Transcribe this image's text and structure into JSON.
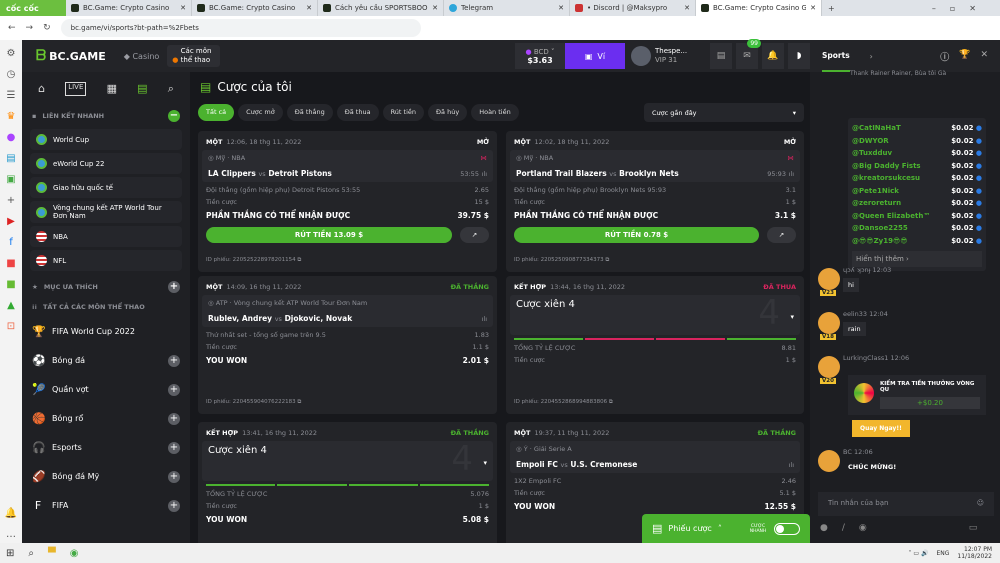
{
  "browser": {
    "logo": "cốc cốc",
    "tabs": [
      "BC.Game: Crypto Casino",
      "BC.Game: Crypto Casino",
      "Cách yêu cầu SPORTSBOOK",
      "Telegram",
      "• Discord | @Maksypro",
      "BC.Game: Crypto Casino Gam"
    ],
    "url": "bc.game/vi/sports?bt-path=%2Fbets"
  },
  "header": {
    "brand": "BC.GAME",
    "casino": "Casino",
    "sports": "Các môn thể thao",
    "currency": "BCD",
    "balance": "$3.63",
    "wallet": "Ví",
    "user": "Thespe...",
    "vip": "VIP 31",
    "notif_count": "99"
  },
  "nav": {
    "quick_title": "LIÊN KẾT NHANH",
    "quick": [
      {
        "label": "World Cup",
        "icon": "globe"
      },
      {
        "label": "eWorld Cup 22",
        "icon": "globe"
      },
      {
        "label": "Giao hữu quốc tế",
        "icon": "globe"
      },
      {
        "label": "Vòng chung kết ATP World Tour Đơn Nam",
        "icon": "globe"
      },
      {
        "label": "NBA",
        "icon": "us-flag"
      },
      {
        "label": "NFL",
        "icon": "us-flag"
      }
    ],
    "fav_title": "MỤC ƯA THÍCH",
    "all_title": "TẤT CẢ CÁC MÔN THỂ THAO",
    "sports": [
      {
        "label": "FIFA World Cup 2022",
        "icon": "🏆"
      },
      {
        "label": "Bóng đá",
        "icon": "⚽"
      },
      {
        "label": "Quần vợt",
        "icon": "🎾"
      },
      {
        "label": "Bóng rổ",
        "icon": "🏀"
      },
      {
        "label": "Esports",
        "icon": "🎧"
      },
      {
        "label": "Bóng đá Mỹ",
        "icon": "🏈"
      },
      {
        "label": "FIFA",
        "icon": "F"
      }
    ]
  },
  "main": {
    "title": "Cược của tôi",
    "filters": [
      "Tất cả",
      "Cược mở",
      "Đã thắng",
      "Đã thua",
      "Rút tiền",
      "Đã hủy",
      "Hoàn tiền"
    ],
    "sort": "Cược gần đây",
    "cards": [
      {
        "type": "MỘT",
        "date": "12:06, 18 thg 11, 2022",
        "status": "MỞ",
        "league": "Mỹ · NBA",
        "home": "LA Clippers",
        "away": "Detroit Pistons",
        "score": "53:55",
        "market": "Đội thắng (gồm hiệp phụ) Detroit Pistons  53:55",
        "odds": "2.65",
        "stake_label": "Tiền cược",
        "stake": "15 $",
        "win_label": "PHẦN THẮNG CÓ THỂ NHẬN ĐƯỢC",
        "win": "39.75 $",
        "cashout": "RÚT TIỀN 13.09 $",
        "ticket": "ID phiếu: 220525228978201154"
      },
      {
        "type": "MỘT",
        "date": "12:02, 18 thg 11, 2022",
        "status": "MỞ",
        "league": "Mỹ · NBA",
        "home": "Portland Trail Blazers",
        "away": "Brooklyn Nets",
        "score": "95:93",
        "market": "Đội thắng (gồm hiệp phụ) Brooklyn Nets  95:93",
        "odds": "3.1",
        "stake_label": "Tiền cược",
        "stake": "1 $",
        "win_label": "PHẦN THẮNG CÓ THỂ NHẬN ĐƯỢC",
        "win": "3.1 $",
        "cashout": "RÚT TIỀN 0.78 $",
        "ticket": "ID phiếu: 220525090877334373"
      },
      {
        "type": "MỘT",
        "date": "14:09, 16 thg 11, 2022",
        "status": "ĐÃ THẮNG",
        "league": "ATP · Vòng chung kết ATP World Tour Đơn Nam",
        "home": "Rublev, Andrey",
        "away": "Djokovic, Novak",
        "score": "",
        "market": "Thứ nhất set - tổng số game trên 9.5",
        "odds": "1.83",
        "stake_label": "Tiền cược",
        "stake": "1.1 $",
        "win_label": "YOU WON",
        "win": "2.01 $",
        "ticket": "ID phiếu: 220455904076222183"
      },
      {
        "type": "KẾT HỢP",
        "date": "13:44, 16 thg 11, 2022",
        "status": "ĐÃ THUA",
        "combo": "Cược xiên 4",
        "legs": "4",
        "leg_results": [
          "won",
          "lost",
          "lost",
          "won"
        ],
        "odds_label": "TỔNG TỶ LỆ CƯỢC",
        "odds": "8.81",
        "stake_label": "Tiền cược",
        "stake": "1 $",
        "ticket": "ID phiếu: 220455286899488380​6"
      },
      {
        "type": "KẾT HỢP",
        "date": "13:41, 16 thg 11, 2022",
        "status": "ĐÃ THẮNG",
        "combo": "Cược xiên 4",
        "legs": "4",
        "leg_results": [
          "won",
          "won",
          "won",
          "won"
        ],
        "odds_label": "TỔNG TỶ LỆ CƯỢC",
        "odds": "5.076",
        "stake_label": "Tiền cược",
        "stake": "1 $",
        "win_label": "YOU WON",
        "win": "5.08 $"
      },
      {
        "type": "MỘT",
        "date": "19:37, 11 thg 11, 2022",
        "status": "ĐÃ THẮNG",
        "league": "Ý · Giải Serie A",
        "home": "Empoli FC",
        "away": "U.S. Cremonese",
        "market": "1X2 Empoli FC",
        "odds": "2.46",
        "stake_label": "Tiền cược",
        "stake": "5.1 $",
        "win_label": "YOU WON",
        "win": "12.55 $"
      }
    ],
    "vs": "vs",
    "betslip": "Phiếu cược",
    "quick_bet": "CƯỢC NHANH"
  },
  "colors": {
    "won": "#4bb22f",
    "lost": "#d8245e",
    "accent": "#4bb22f",
    "wallet": "#6b2ef0"
  },
  "chat": {
    "tab": "Sports",
    "top_text": "Thank Rainer Rainer, Bùa tôi Gà",
    "rain": [
      {
        "u": "@CatINaHaT",
        "a": "$0.02"
      },
      {
        "u": "@DWYOR",
        "a": "$0.02"
      },
      {
        "u": "@Tuxdduv",
        "a": "$0.02"
      },
      {
        "u": "@Big Daddy Fists",
        "a": "$0.02"
      },
      {
        "u": "@kreatorsukcesu",
        "a": "$0.02"
      },
      {
        "u": "@Pete1Nick",
        "a": "$0.02"
      },
      {
        "u": "@zeroreturn",
        "a": "$0.02"
      },
      {
        "u": "@Queen Elizabeth™",
        "a": "$0.02"
      },
      {
        "u": "@Dansoe2255",
        "a": "$0.02"
      },
      {
        "u": "@😎😎Zy19😎😎",
        "a": "$0.02"
      }
    ],
    "show_more": "Hiển thị thêm ›",
    "messages": [
      {
        "user": "ɥɔʎ ʞɔnɟ",
        "time": "12:03",
        "vip": "V23",
        "text": "hi"
      },
      {
        "user": "eelin33",
        "time": "12:04",
        "vip": "V18",
        "text": "rain"
      },
      {
        "user": "LurkingClass1",
        "time": "12:06",
        "vip": "V20"
      },
      {
        "user": "BC",
        "time": "12:06",
        "text": "CHÚC MỪNG!"
      }
    ],
    "bonus_title": "KIỂM TRA TIỀN THƯỞNG VÒNG QU",
    "bonus_value": "+$0.20",
    "spin": "Quay Ngay!!",
    "input_placeholder": "Tin nhắn của bạn"
  },
  "taskbar": {
    "lang": "ENG",
    "time": "12:07 PM",
    "date": "11/18/2022"
  }
}
